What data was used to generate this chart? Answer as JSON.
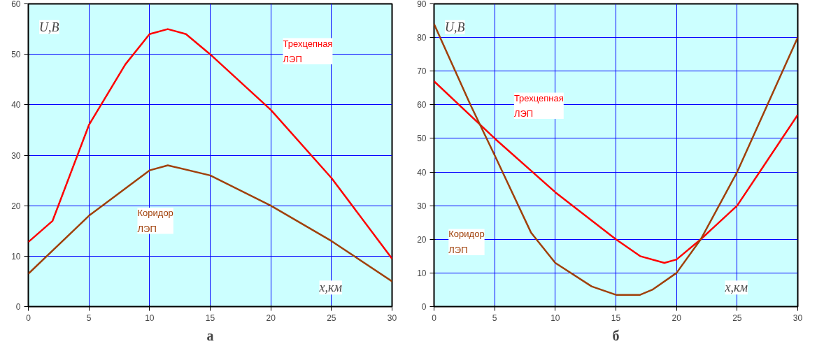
{
  "chart_data": [
    {
      "type": "line",
      "xlabel": "x,км",
      "ylabel": "U,В",
      "annotations": [
        "а"
      ],
      "xlim": [
        0,
        30
      ],
      "ylim": [
        0,
        60
      ],
      "xticks": [
        0,
        5,
        10,
        15,
        20,
        25,
        30
      ],
      "yticks": [
        0,
        10,
        20,
        30,
        40,
        50,
        60
      ],
      "grid": true,
      "marker": "none",
      "line_style": "solid",
      "series": [
        {
          "name": "Трехцепная ЛЭП",
          "color": "#ff0000",
          "x": [
            0,
            2,
            5,
            8,
            10,
            11.5,
            13,
            15,
            20,
            25,
            30
          ],
          "values": [
            12.8,
            17,
            36,
            48,
            54,
            55,
            54,
            50,
            39,
            25.5,
            9.5
          ]
        },
        {
          "name": "Коридор ЛЭП",
          "color": "#a0400a",
          "x": [
            0,
            5,
            10,
            11.5,
            15,
            20,
            25,
            30
          ],
          "values": [
            6.5,
            18,
            27,
            28,
            26,
            20,
            13,
            5
          ]
        }
      ]
    },
    {
      "type": "line",
      "xlabel": "x,км",
      "ylabel": "U,В",
      "annotations": [
        "б"
      ],
      "xlim": [
        0,
        30
      ],
      "ylim": [
        0,
        90
      ],
      "xticks": [
        0,
        5,
        10,
        15,
        20,
        25,
        30
      ],
      "yticks": [
        0,
        10,
        20,
        30,
        40,
        50,
        60,
        70,
        80,
        90
      ],
      "grid": true,
      "marker": "none",
      "line_style": "solid",
      "series": [
        {
          "name": "Трехцепная ЛЭП",
          "color": "#ff0000",
          "x": [
            0,
            5,
            10,
            15,
            17,
            19,
            20,
            22,
            25,
            30
          ],
          "values": [
            67,
            50,
            34,
            20,
            15,
            13,
            14,
            20,
            30,
            57
          ]
        },
        {
          "name": "Коридор ЛЭП",
          "color": "#a0400a",
          "x": [
            0,
            3,
            5,
            8,
            10,
            13,
            15,
            17,
            18,
            20,
            22,
            25,
            30
          ],
          "values": [
            84,
            60,
            45,
            22,
            13,
            6,
            3.5,
            3.5,
            5,
            10,
            20,
            40,
            80
          ]
        }
      ]
    }
  ]
}
